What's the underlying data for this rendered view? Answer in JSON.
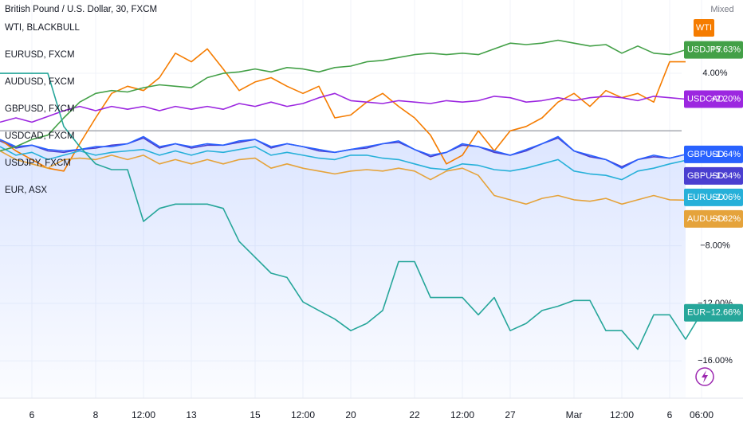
{
  "chart_data": {
    "type": "line",
    "title": "British Pound / U.S. Dollar, 30, FXCM",
    "scale_mode": "Mixed",
    "categories": [
      null,
      null,
      "6",
      null,
      null,
      null,
      "8",
      null,
      null,
      "12:00",
      null,
      null,
      "13",
      null,
      null,
      null,
      "15",
      null,
      null,
      "12:00",
      null,
      null,
      "20",
      null,
      null,
      null,
      "22",
      null,
      null,
      "12:00",
      null,
      null,
      "27",
      null,
      null,
      null,
      "Mar",
      null,
      null,
      "12:00",
      null,
      null,
      "6",
      null,
      "06:00"
    ],
    "ylim": [
      -18.6,
      9.1
    ],
    "yticks": [
      {
        "value": 4,
        "label": "4.00%"
      },
      {
        "value": -8,
        "label": "−8.00%"
      },
      {
        "value": -12,
        "label": "−12.00%"
      },
      {
        "value": -16,
        "label": "−16.00%"
      }
    ],
    "baseline": 0,
    "grid": true,
    "main_series": {
      "tag": "GBPUSD",
      "color": "#4a3fd0",
      "values": [
        -0.7,
        -1.2,
        -1.0,
        -1.4,
        -1.5,
        -1.3,
        -1.2,
        -1.0,
        -0.9,
        -0.5,
        -1.2,
        -0.9,
        -1.2,
        -1.0,
        -1.0,
        -0.8,
        -0.6,
        -1.2,
        -0.9,
        -1.1,
        -1.4,
        -1.5,
        -1.3,
        -1.2,
        -0.9,
        -0.8,
        -1.3,
        -1.8,
        -1.5,
        -1.0,
        -1.1,
        -1.5,
        -1.7,
        -1.4,
        -0.9,
        -0.5,
        -1.4,
        -1.8,
        -2.0,
        -2.5,
        -2.0,
        -1.8,
        -1.9,
        -1.64,
        null
      ],
      "end": {
        "value": -1.64,
        "label": "−1.64%"
      }
    },
    "series": [
      {
        "name": "WTI, BLACKBULL",
        "tag": "WTI",
        "color": "#f57c00",
        "values": [
          -0.6,
          -1.4,
          -2.0,
          -2.6,
          -2.8,
          -0.9,
          0.9,
          2.6,
          3.1,
          2.8,
          3.7,
          5.4,
          4.8,
          5.7,
          4.3,
          2.8,
          3.4,
          3.7,
          3.1,
          2.6,
          3.1,
          0.9,
          1.1,
          2.0,
          2.6,
          1.7,
          0.9,
          -0.3,
          -2.3,
          -1.7,
          0.0,
          -1.4,
          0.0,
          0.3,
          0.9,
          2.0,
          2.6,
          1.7,
          2.8,
          2.3,
          2.6,
          2.0,
          4.8,
          4.8,
          null
        ]
      },
      {
        "name": "EURUSD, FXCM",
        "tag": "EURUSD",
        "color": "#26b0d9",
        "values": [
          -1.1,
          -1.7,
          -1.5,
          -2.0,
          -1.7,
          -1.4,
          -1.7,
          -1.5,
          -1.4,
          -1.3,
          -1.7,
          -1.4,
          -1.7,
          -1.4,
          -1.5,
          -1.3,
          -1.1,
          -1.7,
          -1.5,
          -1.7,
          -1.9,
          -2.0,
          -1.7,
          -1.7,
          -1.9,
          -2.0,
          -2.3,
          -2.6,
          -2.7,
          -2.3,
          -2.4,
          -2.7,
          -2.8,
          -2.6,
          -2.3,
          -2.0,
          -2.8,
          -3.0,
          -3.1,
          -3.4,
          -2.8,
          -2.6,
          -2.3,
          -2.06,
          null
        ],
        "end": {
          "value": -2.06,
          "label": "−2.06%"
        }
      },
      {
        "name": "AUDUSD, FXCM",
        "tag": "AUDUSD",
        "color": "#e5a33b",
        "values": [
          -1.4,
          -2.0,
          -2.3,
          -2.6,
          -2.0,
          -1.9,
          -2.0,
          -1.7,
          -2.0,
          -1.7,
          -2.3,
          -2.0,
          -2.3,
          -2.0,
          -2.3,
          -2.0,
          -1.9,
          -2.6,
          -2.3,
          -2.6,
          -2.8,
          -3.0,
          -2.8,
          -2.7,
          -2.8,
          -2.6,
          -2.8,
          -3.4,
          -2.8,
          -2.6,
          -3.1,
          -4.5,
          -4.8,
          -5.1,
          -4.7,
          -4.5,
          -4.8,
          -4.9,
          -4.7,
          -5.1,
          -4.8,
          -4.5,
          -4.8,
          -4.82,
          null
        ],
        "end": {
          "value": -4.82,
          "label": "−4.82%"
        }
      },
      {
        "name": "GBPUSD, FXCM",
        "tag": "GBPUSD",
        "color": "#2962ff",
        "values": [
          -0.6,
          -1.1,
          -1.0,
          -1.3,
          -1.4,
          -1.3,
          -1.1,
          -1.1,
          -0.9,
          -0.4,
          -1.1,
          -0.9,
          -1.1,
          -0.9,
          -1.0,
          -0.7,
          -0.6,
          -1.1,
          -0.9,
          -1.1,
          -1.3,
          -1.5,
          -1.3,
          -1.1,
          -0.9,
          -0.7,
          -1.3,
          -1.7,
          -1.5,
          -0.9,
          -1.1,
          -1.4,
          -1.7,
          -1.3,
          -0.9,
          -0.4,
          -1.4,
          -1.7,
          -2.0,
          -2.6,
          -2.0,
          -1.7,
          -1.9,
          -1.64,
          null
        ],
        "end": {
          "value": -1.64,
          "label": "−1.64%"
        }
      },
      {
        "name": "USDCAD, FXCM",
        "tag": "USDCAD",
        "color": "#9c27e0",
        "values": [
          0.6,
          0.9,
          0.6,
          1.0,
          1.4,
          1.7,
          1.4,
          1.7,
          1.5,
          1.7,
          1.4,
          1.7,
          1.5,
          1.7,
          1.5,
          1.9,
          1.7,
          2.0,
          1.7,
          1.9,
          2.3,
          2.6,
          2.1,
          2.0,
          1.9,
          2.1,
          2.0,
          1.9,
          2.1,
          2.0,
          2.1,
          2.4,
          2.3,
          2.0,
          2.1,
          2.3,
          2.1,
          2.3,
          2.4,
          2.3,
          2.1,
          2.4,
          2.3,
          2.2,
          null
        ],
        "end": {
          "value": 2.2,
          "label": "+2.20%"
        }
      },
      {
        "name": "USDJPY, FXCM",
        "tag": "USDJPY",
        "color": "#43a047",
        "values": [
          -1.4,
          -1.1,
          -0.6,
          -0.3,
          0.9,
          2.0,
          2.6,
          2.8,
          2.7,
          3.0,
          3.2,
          3.1,
          3.0,
          3.7,
          4.0,
          4.1,
          4.3,
          4.1,
          4.4,
          4.3,
          4.1,
          4.4,
          4.5,
          4.8,
          4.9,
          5.1,
          5.3,
          5.4,
          5.3,
          5.4,
          5.3,
          5.7,
          6.1,
          6.0,
          6.1,
          6.3,
          6.1,
          5.9,
          6.0,
          5.4,
          5.9,
          5.4,
          5.3,
          5.63,
          null
        ],
        "end": {
          "value": 5.63,
          "label": "+5.63%"
        }
      },
      {
        "name": "EUR, ASX",
        "tag": "EUR",
        "color": "#26a69a",
        "values": [
          4.0,
          4.0,
          4.0,
          4.0,
          0.3,
          -1.1,
          -2.3,
          -2.7,
          -2.7,
          -6.3,
          -5.4,
          -5.1,
          -5.1,
          -5.1,
          -5.4,
          -7.7,
          -8.8,
          -9.9,
          -10.2,
          -11.9,
          -12.5,
          -13.1,
          -13.9,
          -13.4,
          -12.5,
          -9.1,
          -9.1,
          -11.6,
          -11.6,
          -11.6,
          -12.8,
          -11.6,
          -13.9,
          -13.4,
          -12.5,
          -12.2,
          -11.8,
          -11.8,
          -13.9,
          -13.9,
          -15.2,
          -12.8,
          -12.8,
          -14.5,
          -12.66
        ],
        "end": {
          "value": -12.66,
          "label": "−12.66%"
        }
      }
    ]
  }
}
